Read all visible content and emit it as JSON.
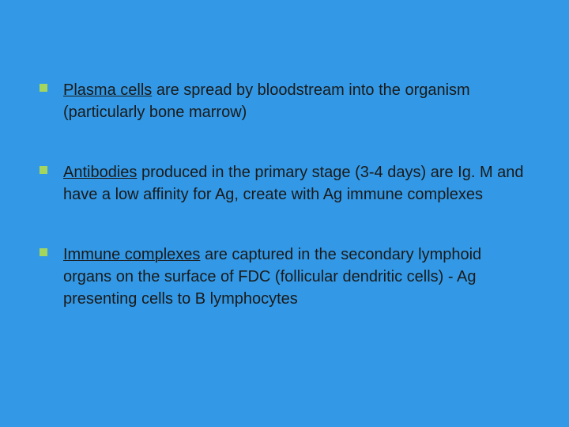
{
  "slide": {
    "background_color": "#3399e6",
    "bullet_color": "#a4d65e",
    "text_color": "#1a1a1a",
    "font_family": "Verdana",
    "font_size_pt": 20,
    "items": [
      {
        "underlined": "Plasma cells",
        "rest": " are spread by bloodstream into the organism (particularly bone marrow)"
      },
      {
        "underlined": "Antibodies",
        "rest": " produced in the primary stage (3-4 days) are Ig. M and have a low affinity for Ag, create with Ag immune complexes"
      },
      {
        "underlined": "Immune complexes",
        "rest": " are captured in the secondary lymphoid organs on the surface of FDC (follicular dendritic cells) - Ag presenting cells to B lymphocytes"
      }
    ]
  }
}
